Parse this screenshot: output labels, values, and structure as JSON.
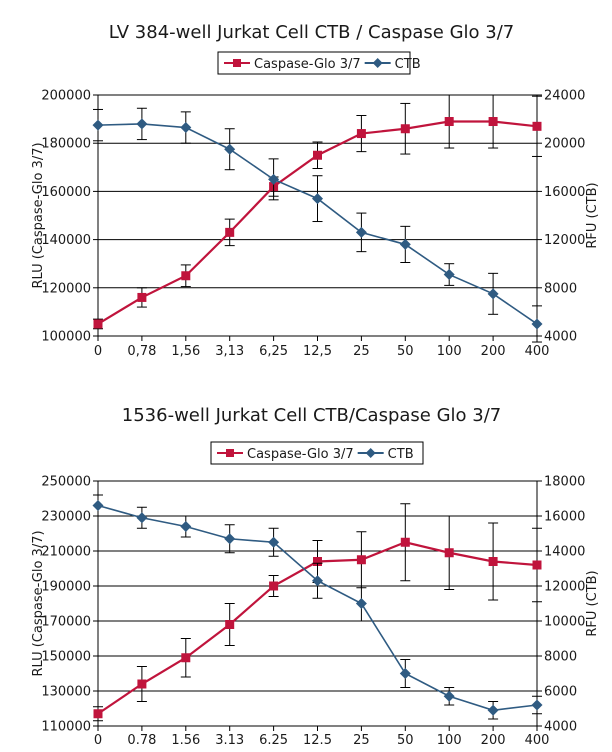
{
  "colors": {
    "caspase": "#c0143c",
    "ctb": "#2f5b82",
    "grid": "#000000",
    "axis": "#000000"
  },
  "chart_data": [
    {
      "type": "line",
      "title": "LV 384-well Jurkat Cell CTB / Caspase Glo 3/7",
      "ylabel": "RLU (Caspase-Glo 3/7)",
      "y2label": "RFU (CTB)",
      "xlabel": "",
      "categories": [
        "0",
        "0,78",
        "1,56",
        "3,13",
        "6,25",
        "12,5",
        "25",
        "50",
        "100",
        "200",
        "400"
      ],
      "ylim": [
        100000,
        200000
      ],
      "yticks": [
        "100000",
        "120000",
        "140000",
        "160000",
        "180000",
        "200000"
      ],
      "y2lim": [
        4000,
        24000
      ],
      "y2ticks": [
        "4000",
        "8000",
        "12000",
        "16000",
        "20000",
        "24000"
      ],
      "grid": true,
      "legend": "top-center",
      "series": [
        {
          "name": "Caspase-Glo 3/7",
          "axis": "left",
          "color": "caspase",
          "marker": "square",
          "values": [
            105000,
            116000,
            125000,
            143000,
            162000,
            175000,
            184000,
            186000,
            189000,
            189000,
            187000
          ],
          "errors": [
            2000,
            4000,
            4500,
            5500,
            4000,
            5500,
            7500,
            10500,
            11000,
            11000,
            12500
          ]
        },
        {
          "name": "CTB",
          "axis": "right",
          "color": "ctb",
          "marker": "diamond",
          "values": [
            21500,
            21600,
            21300,
            19500,
            17000,
            15400,
            12600,
            11600,
            9100,
            7500,
            5000
          ],
          "errors": [
            1300,
            1300,
            1300,
            1700,
            1700,
            1900,
            1600,
            1500,
            900,
            1700,
            1500
          ]
        }
      ]
    },
    {
      "type": "line",
      "title": "1536-well Jurkat Cell CTB/Caspase Glo 3/7",
      "ylabel": "RLU (Caspase-Glo 3/7)",
      "y2label": "RFU (CTB)",
      "xlabel": "",
      "categories": [
        "0",
        "0.78",
        "1.56",
        "3.13",
        "6.25",
        "12.5",
        "25",
        "50",
        "100",
        "200",
        "400"
      ],
      "ylim": [
        110000,
        250000
      ],
      "yticks": [
        "110000",
        "130000",
        "150000",
        "170000",
        "190000",
        "210000",
        "230000",
        "250000"
      ],
      "y2lim": [
        4000,
        18000
      ],
      "y2ticks": [
        "4000",
        "6000",
        "8000",
        "10000",
        "12000",
        "14000",
        "16000",
        "18000"
      ],
      "grid": true,
      "legend": "top-center",
      "series": [
        {
          "name": "Caspase-Glo 3/7",
          "axis": "left",
          "color": "caspase",
          "marker": "square",
          "values": [
            117000,
            134000,
            149000,
            168000,
            190000,
            204000,
            205000,
            215000,
            209000,
            204000,
            202000
          ],
          "errors": [
            4000,
            10000,
            11000,
            12000,
            6000,
            12000,
            16000,
            22000,
            21000,
            22000,
            21000
          ]
        },
        {
          "name": "CTB",
          "axis": "right",
          "color": "ctb",
          "marker": "diamond",
          "values": [
            16600,
            15900,
            15400,
            14700,
            14500,
            12300,
            11000,
            7000,
            5700,
            4900,
            5200
          ],
          "errors": [
            600,
            600,
            600,
            800,
            800,
            1000,
            1000,
            800,
            500,
            500,
            500
          ]
        }
      ]
    }
  ]
}
